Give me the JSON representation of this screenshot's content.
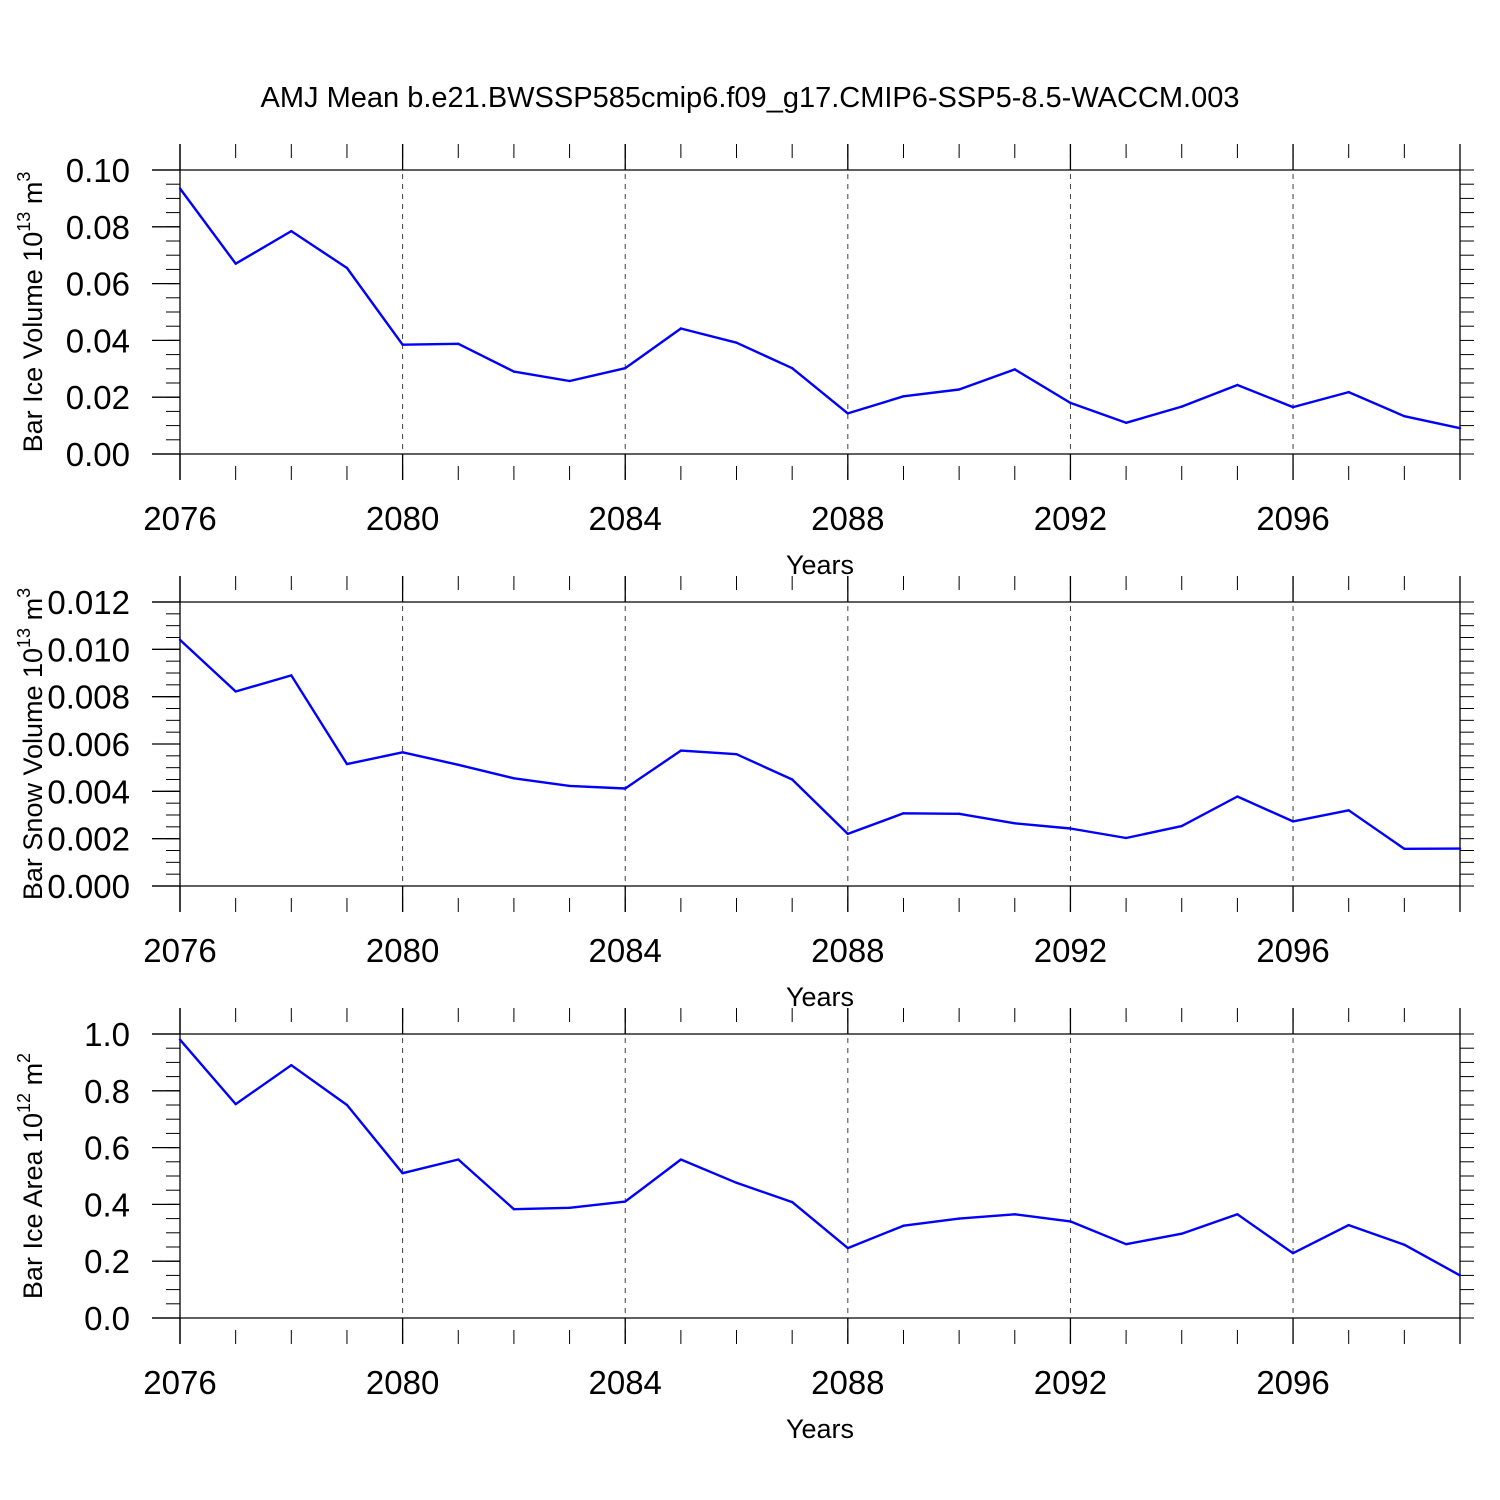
{
  "title": "AMJ Mean b.e21.BWSSP585cmip6.f09_g17.CMIP6-SSP5-8.5-WACCM.003",
  "colors": {
    "line": "#0000ff",
    "axis": "#000000",
    "grid": "#000000",
    "background": "#ffffff"
  },
  "chart_data": [
    {
      "type": "line",
      "ylabel": {
        "text": "Bar Ice Volume 10",
        "exponent": "13",
        "unit": " m",
        "unit_exponent": "3"
      },
      "xlabel": "Years",
      "xlim": [
        2076,
        2099
      ],
      "ylim": [
        0,
        0.1
      ],
      "grid_x": "dashed vertical at major ticks",
      "x_ticks": [
        2076,
        2080,
        2084,
        2088,
        2092,
        2096
      ],
      "x_tick_labels": [
        "2076",
        "2080",
        "2084",
        "2088",
        "2092",
        "2096"
      ],
      "y_ticks": [
        0,
        0.02,
        0.04,
        0.06,
        0.08,
        0.1
      ],
      "y_tick_labels": [
        "0.00",
        "0.02",
        "0.04",
        "0.06",
        "0.08",
        "0.10"
      ],
      "y_minor_step": 0.005,
      "x": [
        2076,
        2077,
        2078,
        2079,
        2080,
        2081,
        2082,
        2083,
        2084,
        2085,
        2086,
        2087,
        2088,
        2089,
        2090,
        2091,
        2092,
        2093,
        2094,
        2095,
        2096,
        2097,
        2098,
        2099
      ],
      "series": [
        {
          "name": "Bar Ice Volume",
          "values": [
            0.0935,
            0.067,
            0.0785,
            0.0655,
            0.0385,
            0.0388,
            0.029,
            0.0257,
            0.0302,
            0.0442,
            0.0392,
            0.0302,
            0.0143,
            0.0203,
            0.0227,
            0.0298,
            0.018,
            0.011,
            0.0167,
            0.0243,
            0.0165,
            0.0218,
            0.0133,
            0.0091
          ]
        }
      ]
    },
    {
      "type": "line",
      "ylabel": {
        "text": "Bar Snow Volume 10",
        "exponent": "13",
        "unit": " m",
        "unit_exponent": "3"
      },
      "xlabel": "Years",
      "xlim": [
        2076,
        2099
      ],
      "ylim": [
        0,
        0.012
      ],
      "grid_x": "dashed vertical at major ticks",
      "x_ticks": [
        2076,
        2080,
        2084,
        2088,
        2092,
        2096
      ],
      "x_tick_labels": [
        "2076",
        "2080",
        "2084",
        "2088",
        "2092",
        "2096"
      ],
      "y_ticks": [
        0,
        0.002,
        0.004,
        0.006,
        0.008,
        0.01,
        0.012
      ],
      "y_tick_labels": [
        "0.000",
        "0.002",
        "0.004",
        "0.006",
        "0.008",
        "0.010",
        "0.012"
      ],
      "y_minor_step": 0.0005,
      "x": [
        2076,
        2077,
        2078,
        2079,
        2080,
        2081,
        2082,
        2083,
        2084,
        2085,
        2086,
        2087,
        2088,
        2089,
        2090,
        2091,
        2092,
        2093,
        2094,
        2095,
        2096,
        2097,
        2098,
        2099
      ],
      "series": [
        {
          "name": "Bar Snow Volume",
          "values": [
            0.0104,
            0.00822,
            0.0089,
            0.00515,
            0.00565,
            0.00512,
            0.00455,
            0.00423,
            0.00412,
            0.00572,
            0.00557,
            0.0045,
            0.0022,
            0.00307,
            0.00305,
            0.00265,
            0.00243,
            0.00203,
            0.00253,
            0.00378,
            0.00273,
            0.0032,
            0.00157,
            0.00158
          ]
        }
      ]
    },
    {
      "type": "line",
      "ylabel": {
        "text": "Bar Ice Area 10",
        "exponent": "12",
        "unit": " m",
        "unit_exponent": "2"
      },
      "xlabel": "Years",
      "xlim": [
        2076,
        2099
      ],
      "ylim": [
        0,
        1.0
      ],
      "grid_x": "dashed vertical at major ticks",
      "x_ticks": [
        2076,
        2080,
        2084,
        2088,
        2092,
        2096
      ],
      "x_tick_labels": [
        "2076",
        "2080",
        "2084",
        "2088",
        "2092",
        "2096"
      ],
      "y_ticks": [
        0,
        0.2,
        0.4,
        0.6,
        0.8,
        1.0
      ],
      "y_tick_labels": [
        "0.0",
        "0.2",
        "0.4",
        "0.6",
        "0.8",
        "1.0"
      ],
      "y_minor_step": 0.05,
      "x": [
        2076,
        2077,
        2078,
        2079,
        2080,
        2081,
        2082,
        2083,
        2084,
        2085,
        2086,
        2087,
        2088,
        2089,
        2090,
        2091,
        2092,
        2093,
        2094,
        2095,
        2096,
        2097,
        2098,
        2099
      ],
      "series": [
        {
          "name": "Bar Ice Area",
          "values": [
            0.98,
            0.753,
            0.89,
            0.75,
            0.51,
            0.558,
            0.383,
            0.388,
            0.41,
            0.558,
            0.476,
            0.408,
            0.246,
            0.325,
            0.35,
            0.365,
            0.34,
            0.26,
            0.297,
            0.365,
            0.228,
            0.327,
            0.258,
            0.15
          ]
        }
      ]
    }
  ]
}
